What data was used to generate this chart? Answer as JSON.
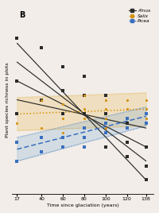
{
  "title": "B",
  "xlabel": "Time since glaciation (years)",
  "ylabel": "Plant species richness in plots",
  "xticks": [
    17,
    40,
    60,
    80,
    100,
    120,
    138
  ],
  "xlim": [
    12,
    145
  ],
  "ylim": [
    0.5,
    4.5
  ],
  "alnus_scatter_x": [
    17,
    17,
    17,
    40,
    40,
    60,
    60,
    60,
    80,
    80,
    80,
    80,
    100,
    100,
    100,
    100,
    120,
    120,
    120,
    138,
    138,
    138,
    138
  ],
  "alnus_scatter_y": [
    3.8,
    2.9,
    2.2,
    3.6,
    2.5,
    3.2,
    2.7,
    2.2,
    3.0,
    2.6,
    2.2,
    1.9,
    2.6,
    2.2,
    1.8,
    1.5,
    2.0,
    1.6,
    1.3,
    2.0,
    1.5,
    1.1,
    0.8
  ],
  "salix_scatter_x": [
    17,
    40,
    40,
    60,
    60,
    60,
    80,
    80,
    80,
    80,
    100,
    100,
    100,
    100,
    120,
    120,
    120,
    120,
    138,
    138,
    138
  ],
  "salix_scatter_y": [
    2.0,
    2.5,
    1.9,
    2.4,
    2.1,
    1.8,
    2.6,
    2.3,
    2.1,
    1.9,
    2.5,
    2.3,
    2.1,
    1.9,
    2.5,
    2.3,
    2.1,
    1.9,
    2.5,
    2.3,
    2.1
  ],
  "picea_scatter_x": [
    17,
    17,
    40,
    40,
    60,
    60,
    80,
    80,
    80,
    100,
    100,
    120,
    120,
    138,
    138
  ],
  "picea_scatter_y": [
    1.6,
    1.2,
    1.7,
    1.4,
    1.7,
    1.5,
    1.9,
    1.7,
    1.5,
    2.0,
    1.8,
    2.1,
    1.9,
    2.2,
    2.0
  ],
  "alnus_lines": [
    {
      "x": [
        17,
        138
      ],
      "y": [
        3.7,
        0.8
      ]
    },
    {
      "x": [
        17,
        138
      ],
      "y": [
        3.3,
        1.2
      ]
    },
    {
      "x": [
        17,
        138
      ],
      "y": [
        2.9,
        1.5
      ]
    },
    {
      "x": [
        17,
        138
      ],
      "y": [
        2.5,
        1.9
      ]
    }
  ],
  "salix_line": {
    "x": [
      17,
      138
    ],
    "y": [
      2.2,
      2.3
    ]
  },
  "salix_ci_upper": {
    "x": [
      17,
      138
    ],
    "y": [
      2.55,
      2.65
    ]
  },
  "salix_ci_lower": {
    "x": [
      17,
      138
    ],
    "y": [
      1.85,
      1.95
    ]
  },
  "picea_line": {
    "x": [
      17,
      138
    ],
    "y": [
      1.45,
      2.15
    ]
  },
  "picea_ci_upper": {
    "x": [
      17,
      138
    ],
    "y": [
      1.7,
      2.35
    ]
  },
  "picea_ci_lower": {
    "x": [
      17,
      138
    ],
    "y": [
      1.2,
      1.95
    ]
  },
  "alnus_color": "#2b2b2b",
  "salix_color": "#d4900a",
  "picea_color": "#3a6fbf",
  "salix_ci_color": "#e8b84b",
  "picea_ci_color": "#7aaad4",
  "bg_color": "#f2ede8"
}
